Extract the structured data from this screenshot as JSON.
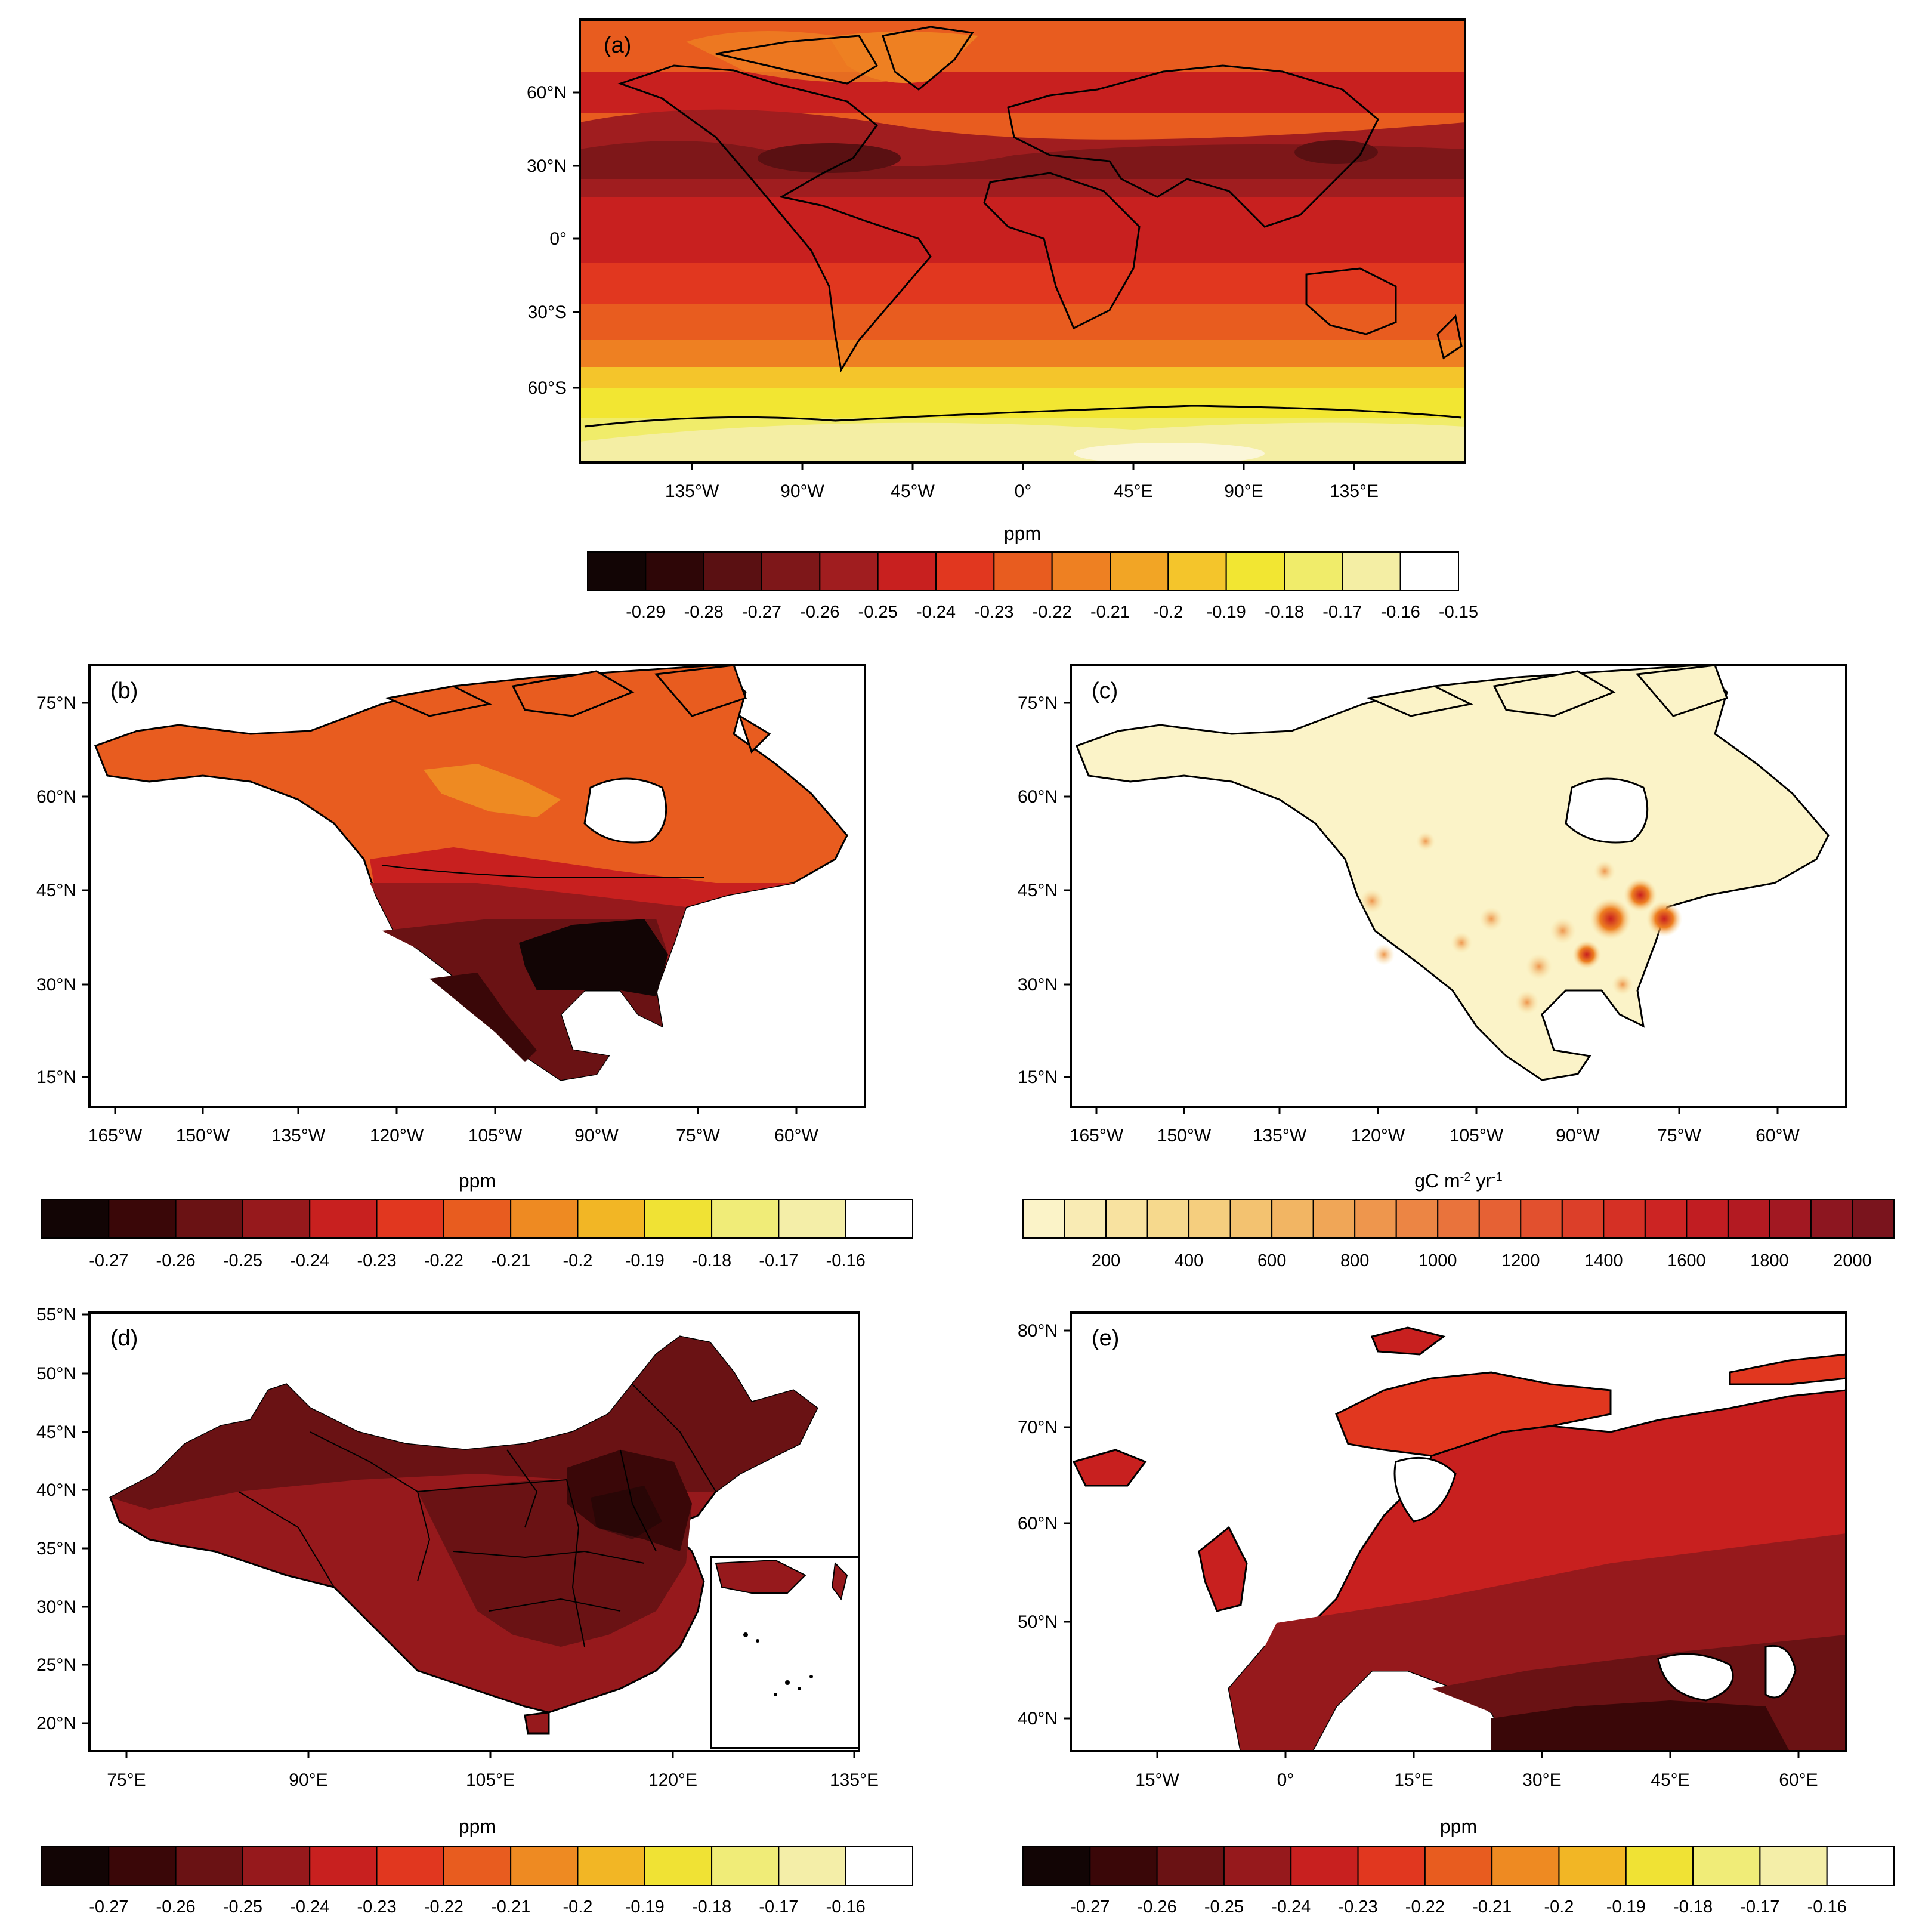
{
  "panels": {
    "a": {
      "label": "(a)",
      "lat_ticks": [
        "60°N",
        "30°N",
        "0°",
        "30°S",
        "60°S"
      ],
      "lon_ticks": [
        "135°W",
        "90°W",
        "45°W",
        "0°",
        "45°E",
        "90°E",
        "135°E"
      ],
      "unit": "ppm",
      "colorbar": {
        "colors": [
          "#120505",
          "#2e0607",
          "#5a1012",
          "#7e1719",
          "#a01d1f",
          "#c8201f",
          "#e1371f",
          "#e85c1f",
          "#ee8022",
          "#f2a525",
          "#f4c52b",
          "#f2e632",
          "#f0ec6a",
          "#f4eea4",
          "#ffffff"
        ],
        "labels": [
          "-0.29",
          "-0.28",
          "-0.27",
          "-0.26",
          "-0.25",
          "-0.24",
          "-0.23",
          "-0.22",
          "-0.21",
          "-0.2",
          "-0.19",
          "-0.18",
          "-0.17",
          "-0.16",
          "-0.15"
        ]
      }
    },
    "b": {
      "label": "(b)",
      "lat_ticks": [
        "75°N",
        "60°N",
        "45°N",
        "30°N",
        "15°N"
      ],
      "lon_ticks": [
        "165°W",
        "150°W",
        "135°W",
        "120°W",
        "105°W",
        "90°W",
        "75°W",
        "60°W"
      ],
      "unit": "ppm",
      "colorbar": {
        "colors": [
          "#120505",
          "#3a0708",
          "#6a1214",
          "#96191c",
          "#c8201f",
          "#e1371f",
          "#e85c1f",
          "#ee8a22",
          "#f2b625",
          "#f0e234",
          "#f0ec78",
          "#f4eea8",
          "#ffffff"
        ],
        "labels": [
          "-0.27",
          "-0.26",
          "-0.25",
          "-0.24",
          "-0.23",
          "-0.22",
          "-0.21",
          "-0.2",
          "-0.19",
          "-0.18",
          "-0.17",
          "-0.16"
        ]
      }
    },
    "c": {
      "label": "(c)",
      "lat_ticks": [
        "75°N",
        "60°N",
        "45°N",
        "30°N",
        "15°N"
      ],
      "lon_ticks": [
        "165°W",
        "150°W",
        "135°W",
        "120°W",
        "105°W",
        "90°W",
        "75°W",
        "60°W"
      ],
      "unit_main": "gC m",
      "unit_exp1": "-2",
      "unit_mid": " yr",
      "unit_exp2": "-1",
      "colorbar": {
        "colors": [
          "#fbf3c8",
          "#f9ebb4",
          "#f8e2a0",
          "#f6d98d",
          "#f5ce7e",
          "#f3c270",
          "#f2b563",
          "#f0a657",
          "#ee964d",
          "#ec8544",
          "#e9733c",
          "#e66134",
          "#e2502e",
          "#dc3f29",
          "#d53025",
          "#cc2423",
          "#c11d22",
          "#b31a22",
          "#a21822",
          "#8d1620",
          "#7a141d"
        ],
        "labels": [
          "200",
          "400",
          "600",
          "800",
          "1000",
          "1200",
          "1400",
          "1600",
          "1800",
          "2000"
        ]
      }
    },
    "d": {
      "label": "(d)",
      "lat_ticks": [
        "55°N",
        "50°N",
        "45°N",
        "40°N",
        "35°N",
        "30°N",
        "25°N",
        "20°N"
      ],
      "lon_ticks": [
        "75°E",
        "90°E",
        "105°E",
        "120°E",
        "135°E"
      ],
      "unit": "ppm",
      "colorbar": {
        "colors": [
          "#120505",
          "#3a0708",
          "#6a1214",
          "#96191c",
          "#c8201f",
          "#e1371f",
          "#e85c1f",
          "#ee8a22",
          "#f2b625",
          "#f0e234",
          "#f0ec78",
          "#f4eea8",
          "#ffffff"
        ],
        "labels": [
          "-0.27",
          "-0.26",
          "-0.25",
          "-0.24",
          "-0.23",
          "-0.22",
          "-0.21",
          "-0.2",
          "-0.19",
          "-0.18",
          "-0.17",
          "-0.16"
        ]
      }
    },
    "e": {
      "label": "(e)",
      "lat_ticks": [
        "80°N",
        "70°N",
        "60°N",
        "50°N",
        "40°N"
      ],
      "lon_ticks": [
        "15°W",
        "0°",
        "15°E",
        "30°E",
        "45°E",
        "60°E"
      ],
      "unit": "ppm",
      "colorbar": {
        "colors": [
          "#120505",
          "#3a0708",
          "#6a1214",
          "#96191c",
          "#c8201f",
          "#e1371f",
          "#e85c1f",
          "#ee8a22",
          "#f2b625",
          "#f0e234",
          "#f0ec78",
          "#f4eea8",
          "#ffffff"
        ],
        "labels": [
          "-0.27",
          "-0.26",
          "-0.25",
          "-0.24",
          "-0.23",
          "-0.22",
          "-0.21",
          "-0.2",
          "-0.19",
          "-0.18",
          "-0.17",
          "-0.16"
        ]
      }
    }
  }
}
